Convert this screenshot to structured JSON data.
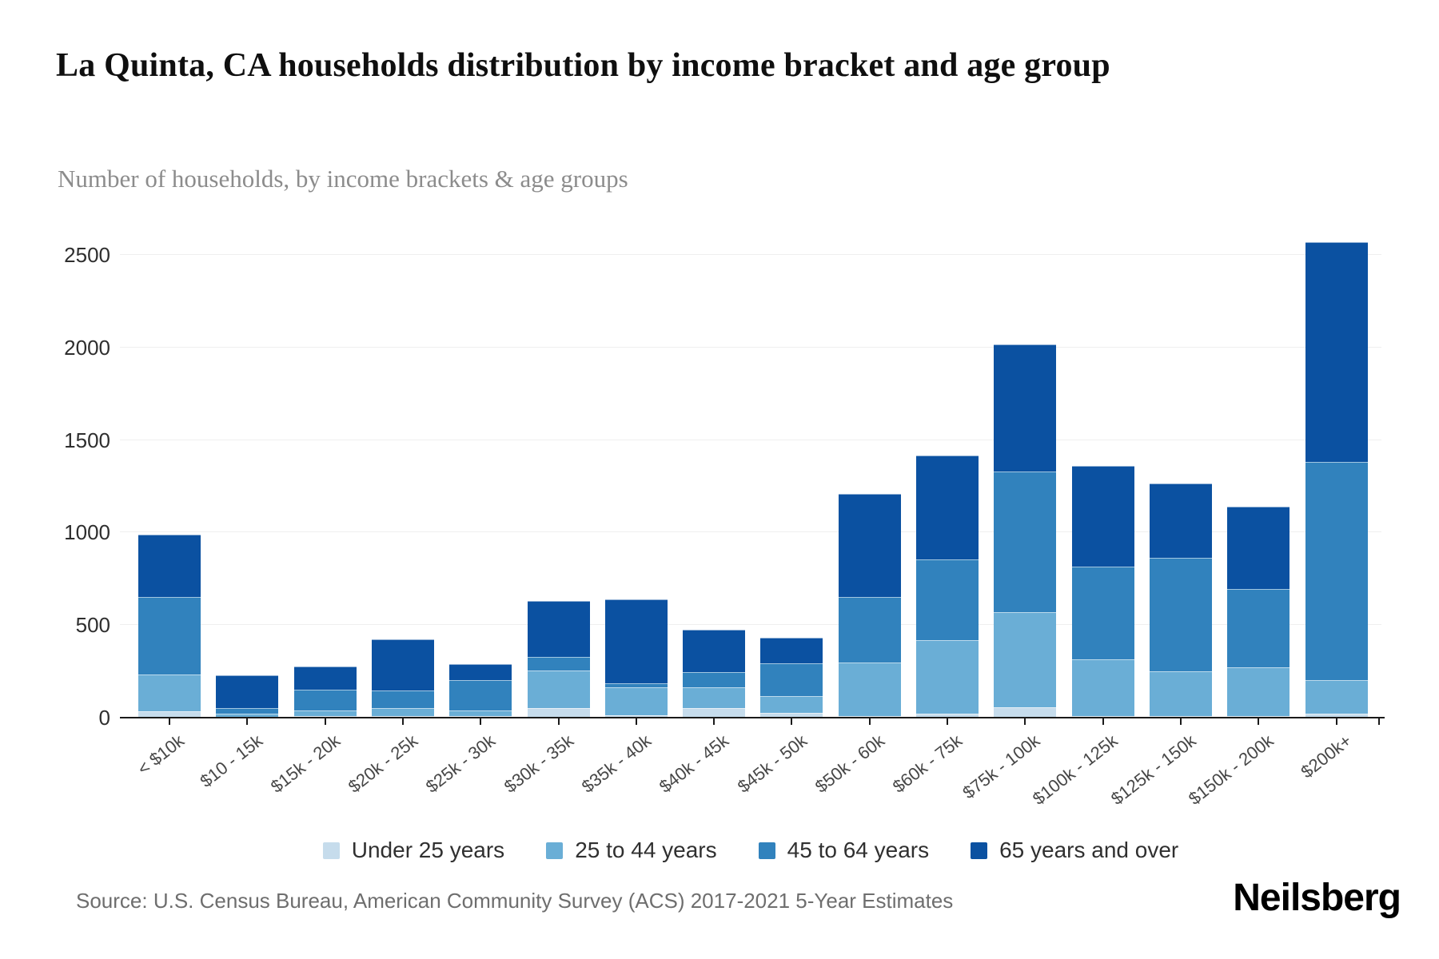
{
  "header": {
    "title": "La Quinta, CA households distribution by income bracket and age group",
    "subtitle": "Number of households, by income brackets & age groups"
  },
  "footer": {
    "source": "Source: U.S. Census Bureau, American Community Survey (ACS) 2017-2021 5-Year Estimates",
    "logo_text": "Neilsberg"
  },
  "legend": {
    "items": [
      {
        "label": "Under 25 years",
        "color": "#c6dcec"
      },
      {
        "label": "25 to 44 years",
        "color": "#6aaed6"
      },
      {
        "label": "45 to 64 years",
        "color": "#3182bd"
      },
      {
        "label": "65 years and over",
        "color": "#0b51a1"
      }
    ]
  },
  "chart_data": {
    "type": "bar",
    "variant": "stacked-vertical",
    "title": "La Quinta, CA households distribution by income bracket and age group",
    "subtitle": "Number of households, by income brackets & age groups",
    "xlabel": "",
    "ylabel": "Number of households",
    "ylim": [
      0,
      2500
    ],
    "yticks": [
      0,
      500,
      1000,
      1500,
      2000,
      2500
    ],
    "grid": "horizontal",
    "legend_position": "bottom",
    "categories": [
      "< $10k",
      "$10 - 15k",
      "$15k - 20k",
      "$20k - 25k",
      "$25k - 30k",
      "$30k - 35k",
      "$35k - 40k",
      "$40k - 45k",
      "$45k - 50k",
      "$50k - 60k",
      "$60k - 75k",
      "$75k - 100k",
      "$100k - 125k",
      "$125k - 150k",
      "$150k - 200k",
      "$200k+"
    ],
    "series": [
      {
        "name": "Under 25 years",
        "color": "#c6dcec",
        "values": [
          35,
          5,
          10,
          10,
          10,
          50,
          15,
          50,
          25,
          10,
          20,
          55,
          10,
          10,
          10,
          20
        ]
      },
      {
        "name": "25 to 44 years",
        "color": "#6aaed6",
        "values": [
          200,
          15,
          30,
          40,
          30,
          205,
          150,
          115,
          90,
          290,
          400,
          515,
          305,
          240,
          260,
          185
        ]
      },
      {
        "name": "45 to 64 years",
        "color": "#3182bd",
        "values": [
          415,
          30,
          110,
          95,
          165,
          75,
          20,
          80,
          180,
          350,
          435,
          760,
          500,
          615,
          425,
          1175
        ]
      },
      {
        "name": "65 years and over",
        "color": "#0b51a1",
        "values": [
          340,
          180,
          125,
          280,
          85,
          300,
          455,
          230,
          135,
          560,
          560,
          685,
          545,
          400,
          445,
          1190
        ]
      }
    ],
    "totals": [
      990,
      230,
      275,
      425,
      290,
      630,
      640,
      475,
      430,
      1210,
      1415,
      2015,
      1360,
      1265,
      1140,
      2570
    ]
  }
}
